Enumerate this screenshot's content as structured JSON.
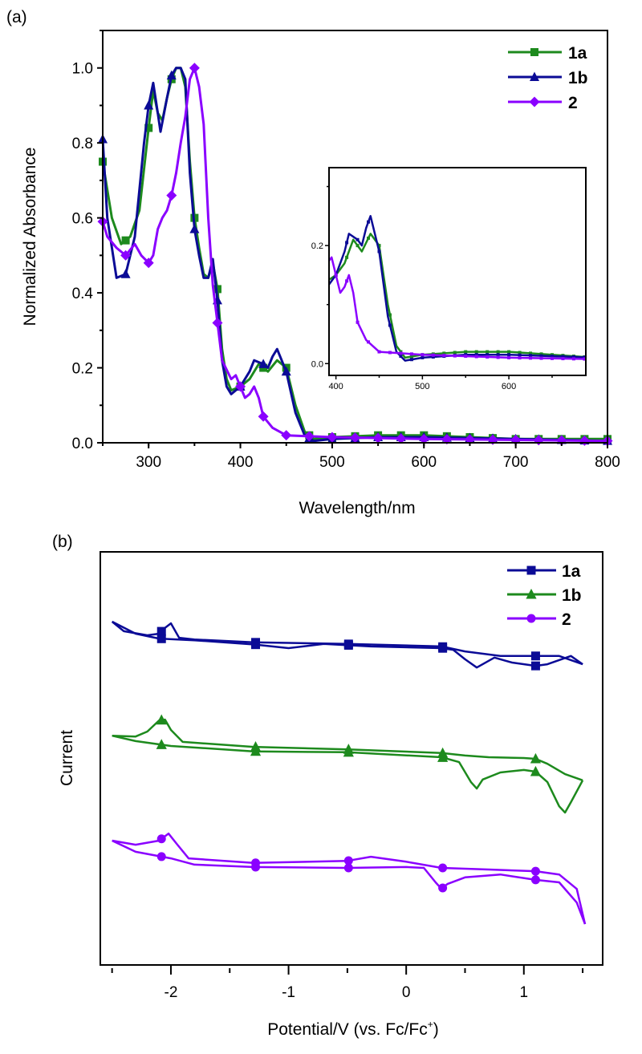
{
  "colors": {
    "green": "#1d8a1d",
    "blue": "#0b0b96",
    "purple": "#8a00ff"
  },
  "chart_data": [
    {
      "panel_label": "(a)",
      "type": "line",
      "xlabel": "Wavelength/nm",
      "ylabel": "Normalized Absorbance",
      "xlim": [
        250,
        800
      ],
      "ylim": [
        0,
        1.1
      ],
      "xticks": [
        300,
        400,
        500,
        600,
        700,
        800
      ],
      "xtick_labels": [
        "300",
        "400",
        "500",
        "600",
        "700",
        "800"
      ],
      "yticks": [
        0,
        0.2,
        0.4,
        0.6,
        0.8,
        1.0
      ],
      "ytick_labels": [
        "0.0",
        "0.2",
        "0.4",
        "0.6",
        "0.8",
        "1.0"
      ],
      "legend_position": "top-right",
      "grid": false,
      "series": [
        {
          "name": "1a",
          "color": "#1d8a1d",
          "marker": "square",
          "x": [
            250,
            260,
            270,
            280,
            290,
            300,
            305,
            310,
            315,
            320,
            325,
            330,
            335,
            340,
            345,
            350,
            355,
            360,
            365,
            370,
            375,
            380,
            385,
            390,
            400,
            410,
            420,
            430,
            440,
            450,
            460,
            470,
            480,
            500,
            550,
            600,
            700,
            800
          ],
          "y": [
            0.75,
            0.6,
            0.53,
            0.55,
            0.62,
            0.84,
            0.94,
            0.88,
            0.86,
            0.92,
            0.97,
            1.0,
            1.0,
            0.95,
            0.75,
            0.6,
            0.52,
            0.45,
            0.44,
            0.48,
            0.41,
            0.25,
            0.17,
            0.14,
            0.15,
            0.17,
            0.21,
            0.19,
            0.22,
            0.2,
            0.1,
            0.03,
            0.01,
            0.015,
            0.02,
            0.02,
            0.01,
            0.01
          ]
        },
        {
          "name": "1b",
          "color": "#0b0b96",
          "marker": "triangle",
          "x": [
            250,
            255,
            265,
            275,
            285,
            295,
            300,
            305,
            310,
            313,
            320,
            325,
            330,
            335,
            340,
            345,
            350,
            355,
            360,
            365,
            370,
            375,
            380,
            385,
            390,
            400,
            410,
            415,
            425,
            430,
            435,
            440,
            445,
            450,
            460,
            470,
            480,
            500,
            550,
            600,
            700,
            800
          ],
          "y": [
            0.81,
            0.6,
            0.44,
            0.45,
            0.55,
            0.8,
            0.9,
            0.96,
            0.88,
            0.83,
            0.92,
            0.98,
            1.0,
            1.0,
            0.97,
            0.72,
            0.57,
            0.5,
            0.44,
            0.44,
            0.49,
            0.38,
            0.22,
            0.15,
            0.13,
            0.15,
            0.19,
            0.22,
            0.21,
            0.2,
            0.23,
            0.25,
            0.22,
            0.19,
            0.08,
            0.02,
            0.005,
            0.01,
            0.015,
            0.015,
            0.01,
            0.005
          ]
        },
        {
          "name": "2",
          "color": "#8a00ff",
          "marker": "diamond",
          "x": [
            250,
            255,
            265,
            275,
            285,
            292,
            300,
            305,
            310,
            315,
            320,
            325,
            330,
            335,
            340,
            345,
            350,
            355,
            360,
            365,
            370,
            375,
            380,
            390,
            395,
            400,
            405,
            410,
            415,
            420,
            425,
            435,
            450,
            500,
            600,
            800
          ],
          "y": [
            0.59,
            0.55,
            0.52,
            0.5,
            0.53,
            0.5,
            0.48,
            0.5,
            0.57,
            0.6,
            0.62,
            0.66,
            0.72,
            0.8,
            0.87,
            0.97,
            1.0,
            0.95,
            0.85,
            0.6,
            0.42,
            0.32,
            0.22,
            0.17,
            0.18,
            0.15,
            0.12,
            0.13,
            0.15,
            0.12,
            0.07,
            0.04,
            0.02,
            0.015,
            0.01,
            0.005
          ]
        }
      ],
      "inset": {
        "xlim": [
          392,
          689
        ],
        "ylim": [
          -0.02,
          0.332
        ],
        "xticks": [
          400,
          500,
          600
        ],
        "xtick_labels": [
          "400",
          "500",
          "600"
        ],
        "yticks": [
          0,
          0.2
        ],
        "ytick_labels": [
          "0.0",
          "0.2"
        ]
      }
    },
    {
      "panel_label": "(b)",
      "type": "line",
      "xlabel": "Potential/V (vs. Fc/Fc",
      "xlabel_sup": "+",
      "xlabel_end": ")",
      "ylabel": "Current",
      "xlim": [
        -2.6,
        1.67
      ],
      "ylim": [
        0,
        100
      ],
      "xticks": [
        -2,
        -1,
        0,
        1
      ],
      "xtick_labels": [
        "-2",
        "-1",
        "0",
        "1"
      ],
      "legend_position": "top-right",
      "grid": false,
      "series": [
        {
          "name": "1a",
          "color": "#0b0b96",
          "marker": "square",
          "forward": {
            "x": [
              -2.5,
              -2.4,
              -2.2,
              -2.1,
              -2.05,
              -2.0,
              -1.93,
              -1.8,
              -1.3,
              -0.5,
              0.3,
              0.5,
              0.8,
              1.1,
              1.3,
              1.5
            ],
            "y": [
              83.1,
              80.8,
              79.8,
              80.2,
              81.6,
              82.7,
              79.2,
              78.8,
              78.1,
              77.7,
              77.1,
              75.9,
              74.8,
              74.8,
              74.8,
              72.8
            ]
          },
          "reverse": {
            "x": [
              1.5,
              1.4,
              1.2,
              1.1,
              0.9,
              0.75,
              0.6,
              0.5,
              0.4,
              0.3,
              -0.3,
              -0.7,
              -1.0,
              -1.3,
              -1.8,
              -2.1,
              -2.3,
              -2.5
            ],
            "y": [
              72.8,
              74.8,
              72.8,
              72.4,
              73.2,
              74.4,
              72.0,
              74.0,
              76.3,
              76.7,
              77.1,
              77.7,
              76.7,
              77.6,
              78.6,
              79.0,
              80.2,
              83.1
            ]
          }
        },
        {
          "name": "1b",
          "color": "#1d8a1d",
          "marker": "triangle",
          "forward": {
            "x": [
              -2.5,
              -2.3,
              -2.2,
              -2.1,
              -2.05,
              -2.0,
              -1.9,
              -1.3,
              -0.5,
              0.3,
              0.5,
              0.7,
              1.0,
              1.1,
              1.2,
              1.35,
              1.5
            ],
            "y": [
              55.5,
              55.3,
              56.5,
              59.2,
              59.4,
              56.9,
              54.0,
              52.8,
              52.2,
              51.3,
              50.7,
              50.3,
              50.1,
              49.9,
              48.7,
              46.2,
              44.7
            ]
          },
          "reverse": {
            "x": [
              1.5,
              1.4,
              1.35,
              1.3,
              1.2,
              1.1,
              1.0,
              0.8,
              0.65,
              0.6,
              0.55,
              0.45,
              0.3,
              -0.5,
              -1.3,
              -2.0,
              -2.3,
              -2.5
            ],
            "y": [
              44.7,
              39.4,
              36.9,
              38.4,
              44.3,
              46.8,
              47.2,
              46.6,
              44.9,
              42.7,
              44.3,
              49.1,
              50.3,
              51.5,
              51.7,
              53.0,
              54.2,
              55.5
            ]
          }
        },
        {
          "name": "2",
          "color": "#8a00ff",
          "marker": "circle",
          "forward": {
            "x": [
              -2.5,
              -2.3,
              -2.1,
              -2.02,
              -1.95,
              -1.85,
              -1.3,
              -0.5,
              -0.3,
              0.0,
              0.3,
              0.7,
              1.1,
              1.3,
              1.45,
              1.52
            ],
            "y": [
              30.1,
              29.1,
              30.1,
              31.8,
              29.3,
              25.8,
              24.7,
              25.2,
              26.2,
              25.0,
              23.5,
              23.1,
              22.7,
              21.9,
              18.4,
              9.9
            ]
          },
          "reverse": {
            "x": [
              1.52,
              1.45,
              1.3,
              1.1,
              0.8,
              0.5,
              0.35,
              0.3,
              0.25,
              0.15,
              0.0,
              -0.5,
              -1.3,
              -1.8,
              -2.0,
              -2.3,
              -2.5
            ],
            "y": [
              9.9,
              15.1,
              20.0,
              20.6,
              21.9,
              21.2,
              19.6,
              18.4,
              20.0,
              23.5,
              23.7,
              23.5,
              23.7,
              24.3,
              25.8,
              27.4,
              30.1
            ]
          }
        }
      ],
      "marker_x": [
        -2.08,
        -1.28,
        -0.49,
        0.31,
        1.1
      ]
    }
  ]
}
